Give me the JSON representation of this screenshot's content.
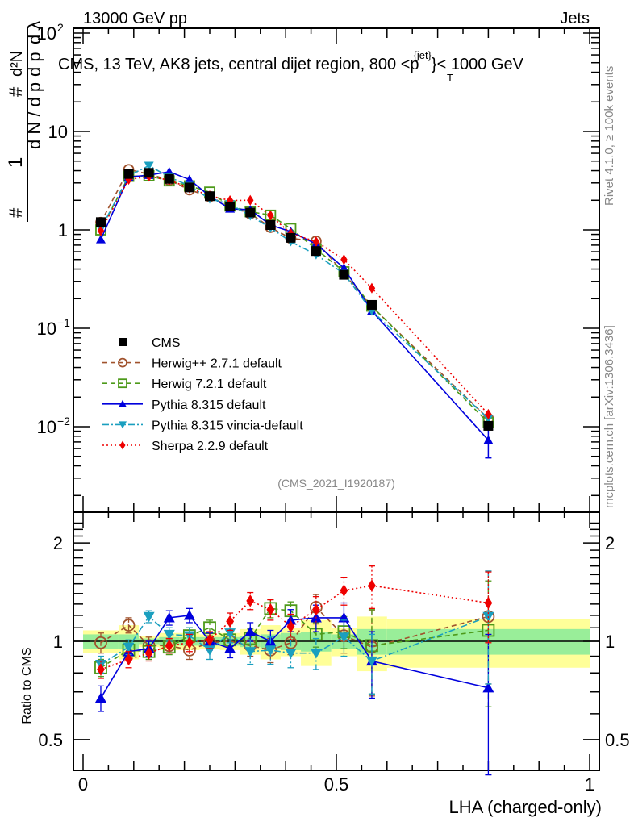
{
  "header": {
    "left": "13000 GeV pp",
    "right": "Jets"
  },
  "side_labels": {
    "rivet": "Rivet 4.1.0, ≥ 100k events",
    "mcplots": "mcplots.cern.ch [arXiv:1306.3436]"
  },
  "chart_data": [
    {
      "type": "line",
      "panel": "main",
      "title": "CMS, 13 TeV, AK8 jets, central dijet region, 800 <p_T^{jet}< 1000 GeV",
      "title_parts": {
        "prefix": "CMS, 13 TeV, AK8 jets, central dijet region, 800 <p",
        "sub": "T",
        "sup": "{jet}",
        "suffix": "}< 1000 GeV"
      },
      "ylabel": "1/N dN/dp_T d²N/dp_T dλ",
      "ylabel_parts": {
        "hash": "#",
        "one": "1",
        "num": "d²N",
        "den1": "d N / d p",
        "den2": "d p",
        "sub": "T",
        "dl": "d λ"
      },
      "xlabel": "",
      "yscale": "log",
      "ylim": [
        0.0018,
        130
      ],
      "xlim": [
        -0.02,
        1.02
      ],
      "y_ticks": [
        {
          "value": 100,
          "label": "10",
          "exp": "2"
        },
        {
          "value": 10,
          "label": "10",
          "exp": ""
        },
        {
          "value": 1,
          "label": "1",
          "exp": ""
        },
        {
          "value": 0.1,
          "label": "10",
          "exp": "−1"
        },
        {
          "value": 0.01,
          "label": "10",
          "exp": "−2"
        }
      ],
      "watermark": "(CMS_2021_I1920187)",
      "legend_position": "center-left",
      "x": [
        0.035,
        0.09,
        0.13,
        0.17,
        0.21,
        0.25,
        0.29,
        0.33,
        0.37,
        0.41,
        0.46,
        0.515,
        0.57,
        0.8
      ],
      "series": [
        {
          "name": "CMS",
          "color": "#000000",
          "marker": "square",
          "line": "none",
          "values": [
            1.2,
            3.7,
            3.8,
            3.3,
            2.7,
            2.2,
            1.73,
            1.5,
            1.12,
            0.83,
            0.61,
            0.35,
            0.173,
            0.0102
          ]
        },
        {
          "name": "Herwig++ 2.7.1 default",
          "color": "#a0522d",
          "marker": "open-circle",
          "line": "dashed",
          "values": [
            1.19,
            4.1,
            3.7,
            3.2,
            2.55,
            2.18,
            1.73,
            1.46,
            1.06,
            0.82,
            0.77,
            0.36,
            0.166,
            0.0121
          ]
        },
        {
          "name": "Herwig 7.2.1 default",
          "color": "#4d9a1a",
          "marker": "open-square",
          "line": "dashed",
          "values": [
            1.0,
            3.5,
            3.55,
            3.15,
            2.8,
            2.42,
            1.75,
            1.53,
            1.41,
            1.03,
            0.64,
            0.375,
            0.168,
            0.011
          ]
        },
        {
          "name": "Pythia 8.315 default",
          "color": "#0000dd",
          "marker": "triangle-up",
          "line": "solid",
          "values": [
            0.8,
            3.45,
            3.6,
            3.9,
            3.25,
            2.2,
            1.64,
            1.6,
            1.12,
            0.96,
            0.72,
            0.41,
            0.15,
            0.0073
          ]
        },
        {
          "name": "Pythia 8.315 vincia-default",
          "color": "#1a9fbf",
          "marker": "triangle-down",
          "line": "dashdot",
          "values": [
            1.02,
            3.55,
            4.5,
            3.45,
            2.8,
            2.07,
            1.83,
            1.39,
            1.05,
            0.76,
            0.56,
            0.36,
            0.15,
            0.0121
          ]
        },
        {
          "name": "Sherpa 2.2.9 default",
          "color": "#ee0000",
          "marker": "diamond",
          "line": "dotted",
          "values": [
            0.98,
            3.25,
            3.5,
            3.2,
            2.67,
            2.22,
            1.99,
            2.0,
            1.4,
            0.92,
            0.76,
            0.5,
            0.256,
            0.0134
          ]
        }
      ]
    },
    {
      "type": "line",
      "panel": "ratio",
      "ylabel": "Ratio to CMS",
      "xlabel": "LHA (charged-only)",
      "yscale": "log",
      "ylim": [
        0.41,
        2.35
      ],
      "xlim": [
        -0.02,
        1.02
      ],
      "y_ticks": [
        {
          "value": 2,
          "label": "2"
        },
        {
          "value": 1,
          "label": "1"
        },
        {
          "value": 0.5,
          "label": "0.5"
        }
      ],
      "x_ticks": [
        {
          "value": 0,
          "label": "0"
        },
        {
          "value": 0.5,
          "label": "0.5"
        },
        {
          "value": 1,
          "label": "1"
        }
      ],
      "bin_edges": [
        0.0,
        0.07,
        0.11,
        0.15,
        0.19,
        0.23,
        0.27,
        0.31,
        0.35,
        0.39,
        0.43,
        0.49,
        0.54,
        0.6,
        1.0
      ],
      "band_inner": [
        0.05,
        0.05,
        0.02,
        0.03,
        0.03,
        0.03,
        0.03,
        0.04,
        0.05,
        0.06,
        0.07,
        0.05,
        0.09,
        0.09
      ],
      "band_outer": [
        0.08,
        0.12,
        0.04,
        0.06,
        0.06,
        0.05,
        0.06,
        0.09,
        0.12,
        0.1,
        0.16,
        0.1,
        0.19,
        0.17
      ],
      "band_colors": {
        "inner": "#99ee99",
        "outer": "#ffff99"
      },
      "x": [
        0.035,
        0.09,
        0.13,
        0.17,
        0.21,
        0.25,
        0.29,
        0.33,
        0.37,
        0.41,
        0.46,
        0.515,
        0.57,
        0.8
      ],
      "series": [
        {
          "name": "Herwig++ 2.7.1 default",
          "color": "#a0522d",
          "marker": "open-circle",
          "line": "dashed",
          "values": [
            0.99,
            1.12,
            0.97,
            0.97,
            0.94,
            0.99,
            1.0,
            0.97,
            0.94,
            0.99,
            1.27,
            1.04,
            0.96,
            1.19
          ],
          "errors": [
            0.07,
            0.06,
            0.06,
            0.05,
            0.06,
            0.05,
            0.06,
            0.07,
            0.08,
            0.08,
            0.12,
            0.12,
            0.28,
            0.45
          ]
        },
        {
          "name": "Herwig 7.2.1 default",
          "color": "#4d9a1a",
          "marker": "open-square",
          "line": "dashed",
          "values": [
            0.83,
            0.94,
            0.93,
            0.96,
            1.04,
            1.1,
            1.01,
            1.02,
            1.26,
            1.24,
            1.05,
            1.07,
            0.97,
            1.08
          ],
          "errors": [
            0.05,
            0.05,
            0.05,
            0.05,
            0.06,
            0.06,
            0.06,
            0.07,
            0.08,
            0.08,
            0.09,
            0.12,
            0.28,
            0.45
          ]
        },
        {
          "name": "Pythia 8.315 default",
          "color": "#0000dd",
          "marker": "triangle-up",
          "line": "solid",
          "values": [
            0.67,
            0.93,
            0.95,
            1.18,
            1.2,
            1.0,
            0.95,
            1.07,
            1.0,
            1.16,
            1.18,
            1.18,
            0.87,
            0.72
          ],
          "errors": [
            0.06,
            0.05,
            0.05,
            0.06,
            0.06,
            0.06,
            0.06,
            0.07,
            0.08,
            0.09,
            0.11,
            0.13,
            0.2,
            0.33
          ]
        },
        {
          "name": "Pythia 8.315 vincia-default",
          "color": "#1a9fbf",
          "marker": "triangle-down",
          "line": "dashdot",
          "values": [
            0.85,
            0.96,
            1.19,
            1.05,
            1.04,
            0.94,
            1.06,
            0.93,
            0.94,
            0.92,
            0.92,
            1.03,
            0.87,
            1.19
          ],
          "errors": [
            0.05,
            0.05,
            0.05,
            0.05,
            0.06,
            0.06,
            0.07,
            0.08,
            0.09,
            0.09,
            0.1,
            0.13,
            0.18,
            0.45
          ]
        },
        {
          "name": "Sherpa 2.2.9 default",
          "color": "#ee0000",
          "marker": "diamond",
          "line": "dotted",
          "values": [
            0.82,
            0.88,
            0.92,
            0.97,
            0.99,
            1.01,
            1.15,
            1.33,
            1.25,
            1.11,
            1.25,
            1.43,
            1.48,
            1.31
          ],
          "errors": [
            0.05,
            0.05,
            0.05,
            0.05,
            0.06,
            0.06,
            0.07,
            0.08,
            0.09,
            0.1,
            0.12,
            0.14,
            0.22,
            0.32
          ]
        }
      ]
    }
  ]
}
